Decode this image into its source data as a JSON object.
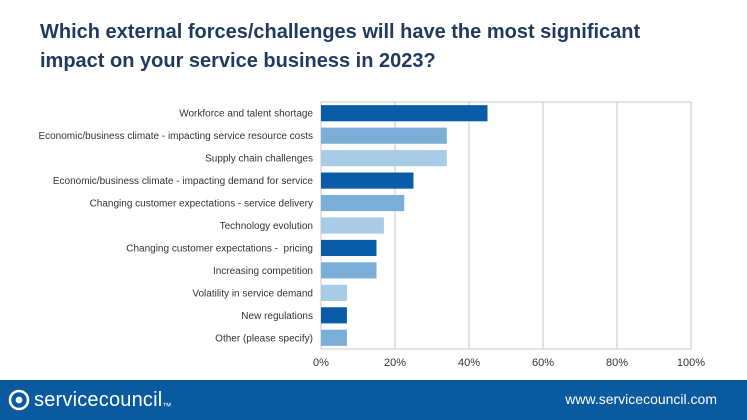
{
  "header": {
    "title_line1": "Which external forces/challenges will have the most significant",
    "title_line2": "impact on your service business in 2023?"
  },
  "footer": {
    "brand": "servicecouncil",
    "trademark": "™",
    "url": "www.servicecouncil.com"
  },
  "colors": {
    "title": "#1f3a5f",
    "footer_bg": "#0a5aa0",
    "bar_dark": "#0b5ca7",
    "bar_mid": "#7aaed6",
    "bar_light": "#a8cbe6",
    "gridline": "#c8c8c8"
  },
  "chart_data": {
    "type": "bar",
    "orientation": "horizontal",
    "title": "Which external forces/challenges will have the most significant impact on your service business in 2023?",
    "categories": [
      "Workforce and talent shortage",
      "Economic/business climate - impacting service resource costs",
      "Supply chain challenges",
      "Economic/business climate - impacting demand for service",
      "Changing customer expectations - service delivery",
      "Technology evolution",
      "Changing customer expectations -  pricing",
      "Increasing competition",
      "Volatility in service demand",
      "New regulations",
      "Other (please specify)"
    ],
    "values": [
      45,
      34,
      34,
      25,
      22.5,
      17,
      15,
      15,
      7,
      7,
      7
    ],
    "bar_colors": [
      "#0b5ca7",
      "#7aaed6",
      "#a8cbe6",
      "#0b5ca7",
      "#7aaed6",
      "#a8cbe6",
      "#0b5ca7",
      "#7aaed6",
      "#a8cbe6",
      "#0b5ca7",
      "#7aaed6"
    ],
    "xlim": [
      0,
      100
    ],
    "xticks": [
      "0%",
      "20%",
      "40%",
      "60%",
      "80%",
      "100%"
    ],
    "xtick_values": [
      0,
      20,
      40,
      60,
      80,
      100
    ],
    "grid": true,
    "legend": "none"
  }
}
